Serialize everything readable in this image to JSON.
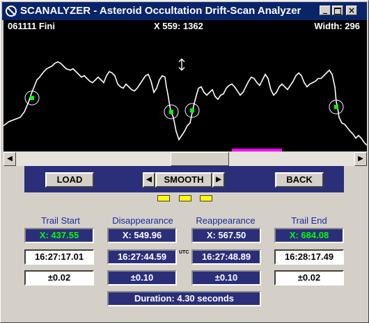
{
  "window": {
    "title": "SCANALYZER - Asteroid Occultation Drift-Scan Analyzer"
  },
  "scope": {
    "label": "061111 Fini",
    "cursor_readout": "X 559: 1362",
    "width_readout": "Width: 296"
  },
  "controls": {
    "load_label": "LOAD",
    "smooth_label": "SMOOTH",
    "back_label": "BACK",
    "left_arrow": "◀",
    "right_arrow": "▶"
  },
  "columns": [
    {
      "header": "Trail Start",
      "x": "X:  437.55",
      "time": "16:27:17.01",
      "err": "±0.02"
    },
    {
      "header": "Disappearance",
      "x": "X:  549.96",
      "time": "16:27:44.59",
      "err": "±0.10"
    },
    {
      "header": "Reappearance",
      "x": "X:  567.50",
      "time": "16:27:48.89",
      "err": "±0.10"
    },
    {
      "header": "Trail End",
      "x": "X:  684.08",
      "time": "16:28:17.49",
      "err": "±0.02"
    }
  ],
  "utc_label": "UTC",
  "duration": "Duration:  4.30  seconds",
  "colors": {
    "title_bar": "#0a246a",
    "panel": "#2b2f7a",
    "trace": "#ffffff",
    "marker": "#00ff00",
    "range_bar": "#ff00ff",
    "indicator": "#ffff00"
  }
}
